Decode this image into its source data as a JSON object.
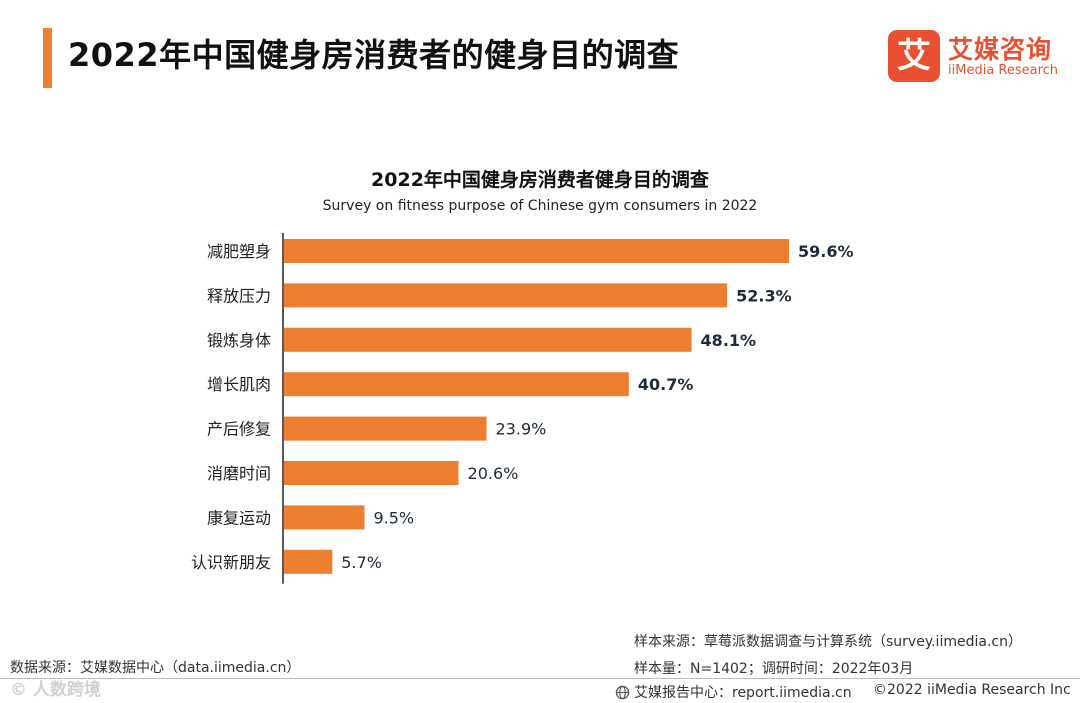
{
  "header": {
    "title": "2022年中国健身房消费者的健身目的调查"
  },
  "logo": {
    "mark": "艾",
    "cn": "艾媒咨询",
    "en": "iiMedia Research"
  },
  "colors": {
    "accent": "#ef7f33",
    "bar": "#ed7d31",
    "brand": "#e8502f"
  },
  "chart_data": {
    "type": "bar",
    "orientation": "horizontal",
    "title": "2022年中国健身房消费者健身目的调查",
    "subtitle": "Survey on fitness purpose of Chinese gym consumers in 2022",
    "categories": [
      "减肥塑身",
      "释放压力",
      "锻炼身体",
      "增长肌肉",
      "产后修复",
      "消磨时间",
      "康复运动",
      "认识新朋友"
    ],
    "values": [
      59.6,
      52.3,
      48.1,
      40.7,
      23.9,
      20.6,
      9.5,
      5.7
    ],
    "labels": [
      "59.6%",
      "52.3%",
      "48.1%",
      "40.7%",
      "23.9%",
      "20.6%",
      "9.5%",
      "5.7%"
    ],
    "bold_labels": [
      true,
      true,
      true,
      true,
      false,
      false,
      false,
      false
    ],
    "unit": "%",
    "xlim": [
      0,
      60
    ],
    "grid": false,
    "legend": "none"
  },
  "sources": {
    "sample_source": "样本来源：草莓派数据调查与计算系统（survey.iimedia.cn）",
    "sample_size": "样本量：N=1402；调研时间：2022年03月",
    "data_source": "数据来源：艾媒数据中心（data.iimedia.cn）",
    "watermark": "©  人数跨境"
  },
  "footer": {
    "report_icon": "globe-icon",
    "report": "艾媒报告中心：report.iimedia.cn",
    "copyright": "©2022  iiMedia Research  Inc"
  }
}
